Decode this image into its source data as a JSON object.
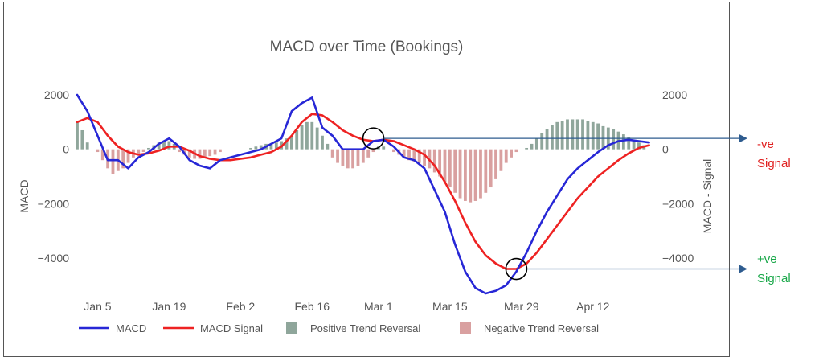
{
  "chart_data": {
    "type": "line",
    "title": "MACD over Time (Bookings)",
    "ylabel": "MACD",
    "y2label": "MACD - Signal",
    "ylim": [
      -5400,
      2300
    ],
    "yticks": [
      2000,
      0,
      -2000,
      -4000
    ],
    "yticklabels": [
      "2000",
      "0",
      "−2000",
      "−4000"
    ],
    "y2ticks": [
      2000,
      0,
      -2000,
      -4000
    ],
    "y2ticklabels": [
      "2000",
      "0",
      "−2000",
      "−4000"
    ],
    "xlim": [
      "2021-01-01",
      "2021-04-24"
    ],
    "xticks": [
      "2021-01-05",
      "2021-01-19",
      "2021-02-02",
      "2021-02-16",
      "2021-03-01",
      "2021-03-15",
      "2021-03-29",
      "2021-04-12"
    ],
    "xticklabels": [
      "Jan 5",
      "Jan 19",
      "Feb 2",
      "Feb 16",
      "Mar 1",
      "Mar 15",
      "Mar 29",
      "Apr 12"
    ],
    "grid": false,
    "legend_position": "bottom",
    "series": [
      {
        "name": "MACD",
        "kind": "line",
        "color": "#2727d6",
        "points": [
          [
            "2021-01-01",
            2000
          ],
          [
            "2021-01-03",
            1400
          ],
          [
            "2021-01-05",
            500
          ],
          [
            "2021-01-07",
            -400
          ],
          [
            "2021-01-09",
            -400
          ],
          [
            "2021-01-11",
            -700
          ],
          [
            "2021-01-13",
            -300
          ],
          [
            "2021-01-15",
            -100
          ],
          [
            "2021-01-17",
            200
          ],
          [
            "2021-01-19",
            400
          ],
          [
            "2021-01-21",
            100
          ],
          [
            "2021-01-23",
            -400
          ],
          [
            "2021-01-25",
            -600
          ],
          [
            "2021-01-27",
            -700
          ],
          [
            "2021-01-29",
            -400
          ],
          [
            "2021-01-31",
            -300
          ],
          [
            "2021-02-02",
            -200
          ],
          [
            "2021-02-04",
            -100
          ],
          [
            "2021-02-06",
            0
          ],
          [
            "2021-02-08",
            200
          ],
          [
            "2021-02-10",
            400
          ],
          [
            "2021-02-12",
            1400
          ],
          [
            "2021-02-14",
            1700
          ],
          [
            "2021-02-16",
            1900
          ],
          [
            "2021-02-18",
            800
          ],
          [
            "2021-02-20",
            500
          ],
          [
            "2021-02-22",
            0
          ],
          [
            "2021-02-24",
            0
          ],
          [
            "2021-02-26",
            0
          ],
          [
            "2021-02-28",
            300
          ],
          [
            "2021-03-02",
            350
          ],
          [
            "2021-03-04",
            100
          ],
          [
            "2021-03-06",
            -300
          ],
          [
            "2021-03-08",
            -400
          ],
          [
            "2021-03-10",
            -700
          ],
          [
            "2021-03-12",
            -1500
          ],
          [
            "2021-03-14",
            -2300
          ],
          [
            "2021-03-16",
            -3500
          ],
          [
            "2021-03-18",
            -4500
          ],
          [
            "2021-03-20",
            -5100
          ],
          [
            "2021-03-22",
            -5300
          ],
          [
            "2021-03-24",
            -5200
          ],
          [
            "2021-03-26",
            -5000
          ],
          [
            "2021-03-28",
            -4500
          ],
          [
            "2021-03-30",
            -3800
          ],
          [
            "2021-04-01",
            -3000
          ],
          [
            "2021-04-03",
            -2300
          ],
          [
            "2021-04-05",
            -1700
          ],
          [
            "2021-04-07",
            -1100
          ],
          [
            "2021-04-09",
            -700
          ],
          [
            "2021-04-11",
            -400
          ],
          [
            "2021-04-13",
            -100
          ],
          [
            "2021-04-15",
            150
          ],
          [
            "2021-04-17",
            300
          ],
          [
            "2021-04-19",
            350
          ],
          [
            "2021-04-21",
            300
          ],
          [
            "2021-04-23",
            250
          ]
        ]
      },
      {
        "name": "MACD Signal",
        "kind": "line",
        "color": "#ee2222",
        "points": [
          [
            "2021-01-01",
            1000
          ],
          [
            "2021-01-03",
            1150
          ],
          [
            "2021-01-05",
            1000
          ],
          [
            "2021-01-07",
            500
          ],
          [
            "2021-01-09",
            100
          ],
          [
            "2021-01-11",
            -100
          ],
          [
            "2021-01-13",
            -200
          ],
          [
            "2021-01-15",
            -150
          ],
          [
            "2021-01-17",
            -50
          ],
          [
            "2021-01-19",
            100
          ],
          [
            "2021-01-21",
            100
          ],
          [
            "2021-01-23",
            -50
          ],
          [
            "2021-01-25",
            -250
          ],
          [
            "2021-01-27",
            -350
          ],
          [
            "2021-01-29",
            -400
          ],
          [
            "2021-01-31",
            -400
          ],
          [
            "2021-02-02",
            -350
          ],
          [
            "2021-02-04",
            -300
          ],
          [
            "2021-02-06",
            -200
          ],
          [
            "2021-02-08",
            -100
          ],
          [
            "2021-02-10",
            100
          ],
          [
            "2021-02-12",
            500
          ],
          [
            "2021-02-14",
            1000
          ],
          [
            "2021-02-16",
            1300
          ],
          [
            "2021-02-18",
            1250
          ],
          [
            "2021-02-20",
            1000
          ],
          [
            "2021-02-22",
            700
          ],
          [
            "2021-02-24",
            500
          ],
          [
            "2021-02-26",
            350
          ],
          [
            "2021-02-28",
            300
          ],
          [
            "2021-03-02",
            350
          ],
          [
            "2021-03-04",
            300
          ],
          [
            "2021-03-06",
            150
          ],
          [
            "2021-03-08",
            0
          ],
          [
            "2021-03-10",
            -200
          ],
          [
            "2021-03-12",
            -600
          ],
          [
            "2021-03-14",
            -1200
          ],
          [
            "2021-03-16",
            -1900
          ],
          [
            "2021-03-18",
            -2700
          ],
          [
            "2021-03-20",
            -3400
          ],
          [
            "2021-03-22",
            -3900
          ],
          [
            "2021-03-24",
            -4200
          ],
          [
            "2021-03-26",
            -4400
          ],
          [
            "2021-03-28",
            -4400
          ],
          [
            "2021-03-30",
            -4200
          ],
          [
            "2021-04-01",
            -3800
          ],
          [
            "2021-04-03",
            -3300
          ],
          [
            "2021-04-05",
            -2800
          ],
          [
            "2021-04-07",
            -2300
          ],
          [
            "2021-04-09",
            -1800
          ],
          [
            "2021-04-11",
            -1400
          ],
          [
            "2021-04-13",
            -1000
          ],
          [
            "2021-04-15",
            -700
          ],
          [
            "2021-04-17",
            -400
          ],
          [
            "2021-04-19",
            -150
          ],
          [
            "2021-04-21",
            50
          ],
          [
            "2021-04-23",
            150
          ]
        ]
      },
      {
        "name": "Positive Trend Reversal",
        "kind": "bar",
        "color": "#8fa69b",
        "points": [
          [
            "2021-01-01",
            1000
          ],
          [
            "2021-01-02",
            700
          ],
          [
            "2021-01-03",
            250
          ],
          [
            "2021-01-15",
            50
          ],
          [
            "2021-01-16",
            150
          ],
          [
            "2021-01-17",
            250
          ],
          [
            "2021-01-18",
            300
          ],
          [
            "2021-01-19",
            300
          ],
          [
            "2021-01-20",
            200
          ],
          [
            "2021-02-04",
            50
          ],
          [
            "2021-02-05",
            100
          ],
          [
            "2021-02-06",
            150
          ],
          [
            "2021-02-07",
            200
          ],
          [
            "2021-02-08",
            200
          ],
          [
            "2021-02-09",
            250
          ],
          [
            "2021-02-10",
            300
          ],
          [
            "2021-02-11",
            400
          ],
          [
            "2021-02-12",
            500
          ],
          [
            "2021-02-13",
            700
          ],
          [
            "2021-02-14",
            900
          ],
          [
            "2021-02-15",
            1000
          ],
          [
            "2021-02-16",
            1000
          ],
          [
            "2021-02-17",
            800
          ],
          [
            "2021-02-18",
            500
          ],
          [
            "2021-02-19",
            200
          ],
          [
            "2021-03-01",
            100
          ],
          [
            "2021-03-02",
            100
          ],
          [
            "2021-03-30",
            50
          ],
          [
            "2021-03-31",
            200
          ],
          [
            "2021-04-01",
            400
          ],
          [
            "2021-04-02",
            600
          ],
          [
            "2021-04-03",
            750
          ],
          [
            "2021-04-04",
            900
          ],
          [
            "2021-04-05",
            1000
          ],
          [
            "2021-04-06",
            1050
          ],
          [
            "2021-04-07",
            1100
          ],
          [
            "2021-04-08",
            1100
          ],
          [
            "2021-04-09",
            1100
          ],
          [
            "2021-04-10",
            1100
          ],
          [
            "2021-04-11",
            1050
          ],
          [
            "2021-04-12",
            1000
          ],
          [
            "2021-04-13",
            950
          ],
          [
            "2021-04-14",
            850
          ],
          [
            "2021-04-15",
            800
          ],
          [
            "2021-04-16",
            750
          ],
          [
            "2021-04-17",
            650
          ],
          [
            "2021-04-18",
            550
          ],
          [
            "2021-04-19",
            450
          ],
          [
            "2021-04-20",
            350
          ],
          [
            "2021-04-21",
            250
          ],
          [
            "2021-04-22",
            150
          ]
        ]
      },
      {
        "name": "Negative Trend Reversal",
        "kind": "bar",
        "color": "#d9a0a0",
        "points": [
          [
            "2021-01-05",
            -100
          ],
          [
            "2021-01-06",
            -400
          ],
          [
            "2021-01-07",
            -700
          ],
          [
            "2021-01-08",
            -900
          ],
          [
            "2021-01-09",
            -800
          ],
          [
            "2021-01-10",
            -700
          ],
          [
            "2021-01-11",
            -500
          ],
          [
            "2021-01-12",
            -300
          ],
          [
            "2021-01-13",
            -200
          ],
          [
            "2021-01-14",
            -100
          ],
          [
            "2021-01-21",
            -100
          ],
          [
            "2021-01-22",
            -200
          ],
          [
            "2021-01-23",
            -300
          ],
          [
            "2021-01-24",
            -350
          ],
          [
            "2021-01-25",
            -350
          ],
          [
            "2021-01-26",
            -300
          ],
          [
            "2021-01-27",
            -250
          ],
          [
            "2021-01-28",
            -200
          ],
          [
            "2021-01-29",
            -100
          ],
          [
            "2021-02-20",
            -300
          ],
          [
            "2021-02-21",
            -500
          ],
          [
            "2021-02-22",
            -600
          ],
          [
            "2021-02-23",
            -700
          ],
          [
            "2021-02-24",
            -700
          ],
          [
            "2021-02-25",
            -600
          ],
          [
            "2021-02-26",
            -500
          ],
          [
            "2021-02-27",
            -300
          ],
          [
            "2021-02-28",
            -100
          ],
          [
            "2021-03-04",
            -100
          ],
          [
            "2021-03-05",
            -200
          ],
          [
            "2021-03-06",
            -300
          ],
          [
            "2021-03-07",
            -400
          ],
          [
            "2021-03-08",
            -450
          ],
          [
            "2021-03-09",
            -500
          ],
          [
            "2021-03-10",
            -600
          ],
          [
            "2021-03-11",
            -700
          ],
          [
            "2021-03-12",
            -850
          ],
          [
            "2021-03-13",
            -1000
          ],
          [
            "2021-03-14",
            -1200
          ],
          [
            "2021-03-15",
            -1400
          ],
          [
            "2021-03-16",
            -1600
          ],
          [
            "2021-03-17",
            -1800
          ],
          [
            "2021-03-18",
            -1900
          ],
          [
            "2021-03-19",
            -1950
          ],
          [
            "2021-03-20",
            -1900
          ],
          [
            "2021-03-21",
            -1800
          ],
          [
            "2021-03-22",
            -1600
          ],
          [
            "2021-03-23",
            -1400
          ],
          [
            "2021-03-24",
            -1100
          ],
          [
            "2021-03-25",
            -800
          ],
          [
            "2021-03-26",
            -500
          ],
          [
            "2021-03-27",
            -300
          ],
          [
            "2021-03-28",
            -100
          ]
        ]
      }
    ],
    "annotations": [
      {
        "name": "neg-signal",
        "x": "2021-02-28",
        "y": 400,
        "label_lines": [
          "-ve",
          "Signal"
        ],
        "label_color": "#e02020"
      },
      {
        "name": "pos-signal",
        "x": "2021-03-28",
        "y": -4400,
        "label_lines": [
          "+ve",
          "Signal"
        ],
        "label_color": "#1aa84a"
      }
    ],
    "colors": {
      "arrow": "#2e5c8f",
      "marker_circle": "#000000",
      "text": "#555555"
    }
  }
}
